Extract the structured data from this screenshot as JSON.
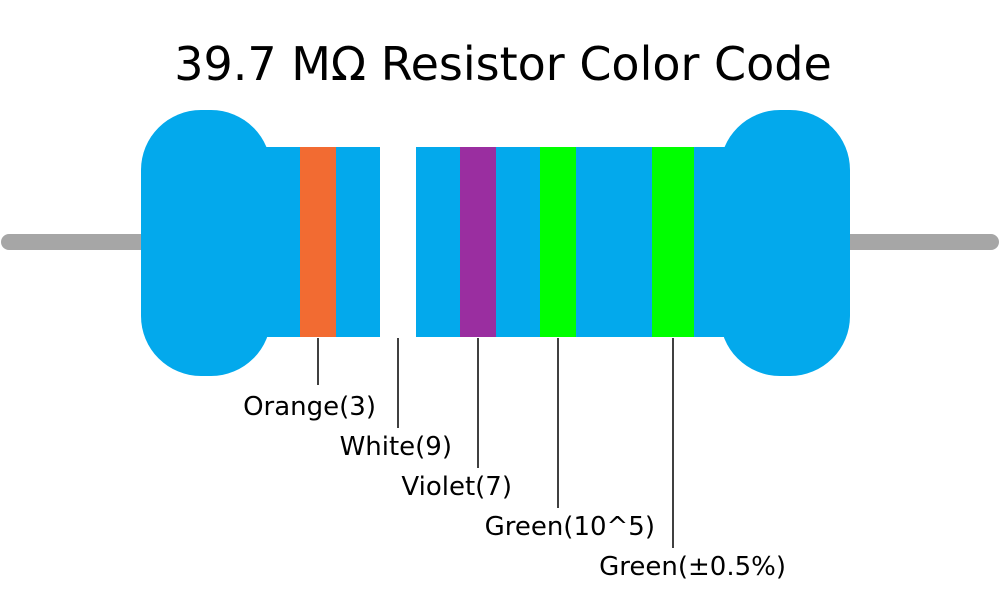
{
  "title": "39.7 MΩ Resistor Color Code",
  "colors": {
    "body": "#03a9ec",
    "lead": "#a6a6a6",
    "leader_line": "#000000",
    "background": "#ffffff"
  },
  "bands": [
    {
      "label": "Orange(3)",
      "color": "#f26b32"
    },
    {
      "label": "White(9)",
      "color": "#ffffff"
    },
    {
      "label": "Violet(7)",
      "color": "#9a2ea0"
    },
    {
      "label": "Green(10^5)",
      "color": "#00ff00"
    },
    {
      "label": "Green(±0.5%)",
      "color": "#00ff00"
    }
  ]
}
